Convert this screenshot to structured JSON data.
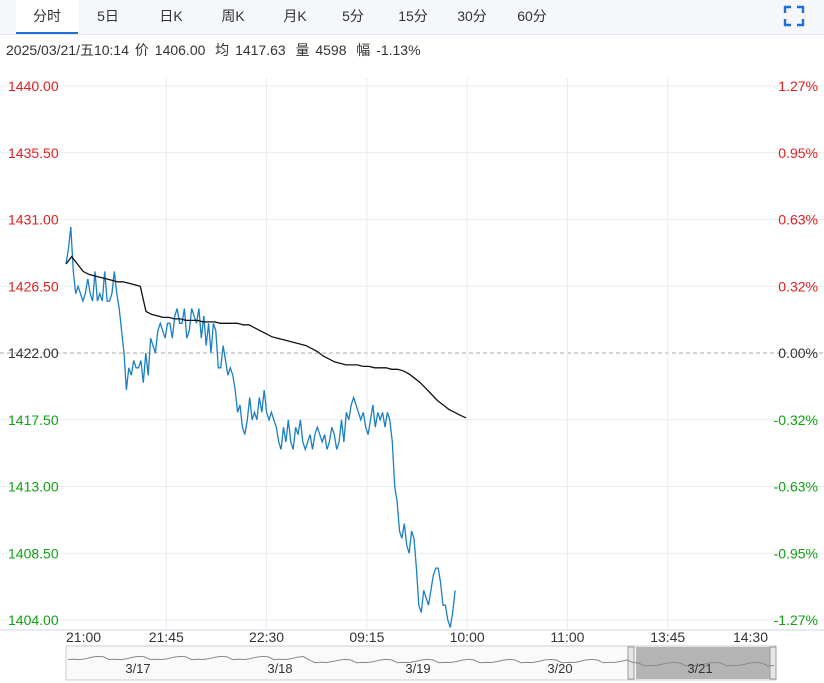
{
  "tabs": [
    {
      "label": "分时",
      "active": true
    },
    {
      "label": "5日"
    },
    {
      "label": "日K"
    },
    {
      "label": "周K"
    },
    {
      "label": "月K"
    },
    {
      "label": "5分"
    },
    {
      "label": "15分"
    },
    {
      "label": "30分"
    },
    {
      "label": "60分"
    }
  ],
  "fullscreen_icon": "fullscreen-icon",
  "info": {
    "datetime": "2025/03/21/五10:14",
    "price_label": "价",
    "price": "1406.00",
    "avg_label": "均",
    "avg": "1417.63",
    "volume_label": "量",
    "volume": "4598",
    "change_label": "幅",
    "change": "-1.13%"
  },
  "colors": {
    "up": "#e02020",
    "down": "#14a014",
    "price_line": "#1a7fc4",
    "avg_line": "#111111",
    "grid": "#e8ecf1",
    "baseline": "#aaaaaa",
    "navigator_fill": "#b4b4b4"
  },
  "chart_data": {
    "type": "line",
    "ylim": [
      1404.0,
      1440.0
    ],
    "y_ticks_left": [
      "1440.00",
      "1435.50",
      "1431.00",
      "1426.50",
      "1422.00",
      "1417.50",
      "1413.00",
      "1408.50",
      "1404.00"
    ],
    "y_ticks_right": [
      "1.27%",
      "0.95%",
      "0.63%",
      "0.32%",
      "0.00%",
      "-0.32%",
      "-0.63%",
      "-0.95%",
      "-1.27%"
    ],
    "x_ticks": [
      "21:00",
      "21:45",
      "22:30",
      "09:15",
      "10:00",
      "11:00",
      "13:45",
      "14:30"
    ],
    "base_price": 1422.0,
    "series": [
      {
        "role": "price",
        "values": [
          1428.0,
          1429.0,
          1430.5,
          1427.5,
          1426.0,
          1426.5,
          1426.0,
          1425.5,
          1426.0,
          1427.0,
          1426.0,
          1425.5,
          1427.5,
          1425.5,
          1426.0,
          1425.5,
          1427.5,
          1425.5,
          1425.5,
          1426.0,
          1427.5,
          1426.0,
          1425.0,
          1423.5,
          1422.0,
          1419.5,
          1421.0,
          1420.5,
          1421.5,
          1421.0,
          1421.0,
          1421.5,
          1420.0,
          1422.0,
          1420.5,
          1423.0,
          1422.5,
          1422.0,
          1423.5,
          1424.0,
          1423.5,
          1423.0,
          1424.0,
          1424.0,
          1423.0,
          1424.5,
          1425.0,
          1424.0,
          1424.0,
          1425.0,
          1423.0,
          1423.5,
          1425.0,
          1424.5,
          1424.0,
          1425.0,
          1423.0,
          1424.5,
          1422.5,
          1424.0,
          1422.0,
          1424.0,
          1423.5,
          1421.0,
          1421.0,
          1422.5,
          1421.5,
          1420.5,
          1421.0,
          1420.5,
          1419.5,
          1418.0,
          1418.5,
          1417.0,
          1416.5,
          1417.5,
          1419.0,
          1417.5,
          1418.0,
          1417.5,
          1419.0,
          1418.0,
          1419.5,
          1418.0,
          1417.5,
          1418.0,
          1417.5,
          1417.0,
          1416.0,
          1415.5,
          1417.0,
          1416.0,
          1417.5,
          1416.0,
          1415.5,
          1417.0,
          1416.5,
          1417.5,
          1416.0,
          1415.5,
          1416.0,
          1416.5,
          1415.5,
          1416.5,
          1417.0,
          1416.5,
          1416.0,
          1416.5,
          1415.5,
          1416.0,
          1417.0,
          1416.5,
          1415.5,
          1416.0,
          1417.5,
          1416.0,
          1418.0,
          1417.5,
          1418.5,
          1419.0,
          1418.5,
          1418.0,
          1417.5,
          1418.0,
          1417.0,
          1416.5,
          1417.5,
          1418.5,
          1417.0,
          1418.0,
          1417.5,
          1418.0,
          1417.0,
          1418.0,
          1417.5,
          1416.0,
          1413.0,
          1412.0,
          1410.0,
          1409.5,
          1410.5,
          1409.0,
          1408.5,
          1410.0,
          1409.5,
          1407.5,
          1405.0,
          1404.5,
          1406.0,
          1405.5,
          1405.0,
          1406.0,
          1407.0,
          1407.5,
          1407.5,
          1406.5,
          1405.0,
          1405.0,
          1404.0,
          1403.5,
          1404.5,
          1406.0
        ]
      },
      {
        "role": "average",
        "values": [
          1428.0,
          1428.5,
          1428.0,
          1427.5,
          1427.3,
          1427.2,
          1427.1,
          1427.0,
          1426.9,
          1426.8,
          1426.8,
          1426.7,
          1426.6,
          1426.5,
          1424.8,
          1424.6,
          1424.5,
          1424.4,
          1424.4,
          1424.3,
          1424.3,
          1424.2,
          1424.2,
          1424.2,
          1424.1,
          1424.1,
          1424.1,
          1424.0,
          1424.0,
          1424.0,
          1424.0,
          1423.9,
          1423.9,
          1423.7,
          1423.5,
          1423.3,
          1423.1,
          1423.0,
          1422.9,
          1422.8,
          1422.7,
          1422.6,
          1422.5,
          1422.3,
          1422.1,
          1421.8,
          1421.6,
          1421.4,
          1421.3,
          1421.2,
          1421.2,
          1421.2,
          1421.1,
          1421.1,
          1421.0,
          1421.0,
          1421.0,
          1420.9,
          1420.9,
          1420.8,
          1420.6,
          1420.3,
          1420.0,
          1419.6,
          1419.2,
          1418.8,
          1418.5,
          1418.2,
          1418.0,
          1417.8,
          1417.63
        ]
      }
    ],
    "navigator_labels": [
      "3/17",
      "3/18",
      "3/19",
      "3/20",
      "3/21"
    ]
  }
}
